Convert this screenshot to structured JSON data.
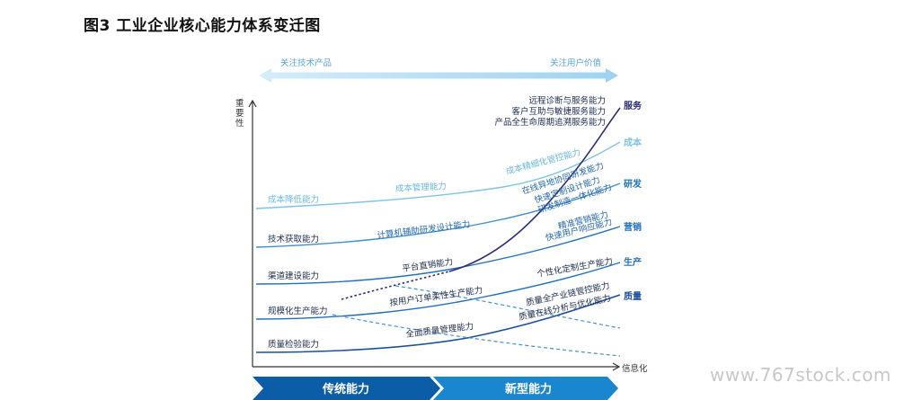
{
  "title": "图3 工业企业核心能力体系变迁图",
  "top_arrow": {
    "left": "关注技术产品",
    "right": "关注用户价值"
  },
  "axes": {
    "y_label_chars": [
      "重",
      "要",
      "性"
    ],
    "x_label": "信息化"
  },
  "banners": {
    "traditional": "传统能力",
    "new": "新型能力"
  },
  "categories": {
    "service": "服务",
    "cost": "成本",
    "rnd": "研发",
    "marketing": "营销",
    "production": "生产",
    "quality": "质量"
  },
  "traditional_labels": {
    "cost": "成本降低能力",
    "tech": "技术获取能力",
    "channel": "渠道建设能力",
    "scale": "规模化生产能力",
    "quality_check": "质量检验能力"
  },
  "transition_labels": {
    "cost_mgmt": "成本管理能力",
    "cad": "计算机辅助研发设计能力",
    "platform_sales": "平台直销能力",
    "flexible_prod": "按用户订单柔性生产能力",
    "total_quality": "全面质量管理能力"
  },
  "new_labels": {
    "service_1": "远程诊断与服务能力",
    "service_2": "客户互助与敏捷服务能力",
    "service_3": "产品全生命周期追溯服务能力",
    "lean_cost": "成本精细化管控能力",
    "rnd_1": "在线异地协同研发能力",
    "rnd_2": "快速定制设计能力",
    "rnd_3": "研发制造一体化能力",
    "mkt_1": "精准营销能力",
    "mkt_2": "快速用户响应能力",
    "custom_prod": "个性化定制生产能力",
    "q_1": "质量全产业链管控能力",
    "q_2": "质量在线分析与优化能力"
  },
  "watermark": "www.767stock.com",
  "colors": {
    "dark_navy": "#2c2c78",
    "light_blue": "#7fc3e6",
    "mid_blue": "#1f6fbf",
    "deep_blue": "#1a4f9c",
    "banner_dark": "#0c5da8",
    "banner_light": "#1b86d0"
  }
}
